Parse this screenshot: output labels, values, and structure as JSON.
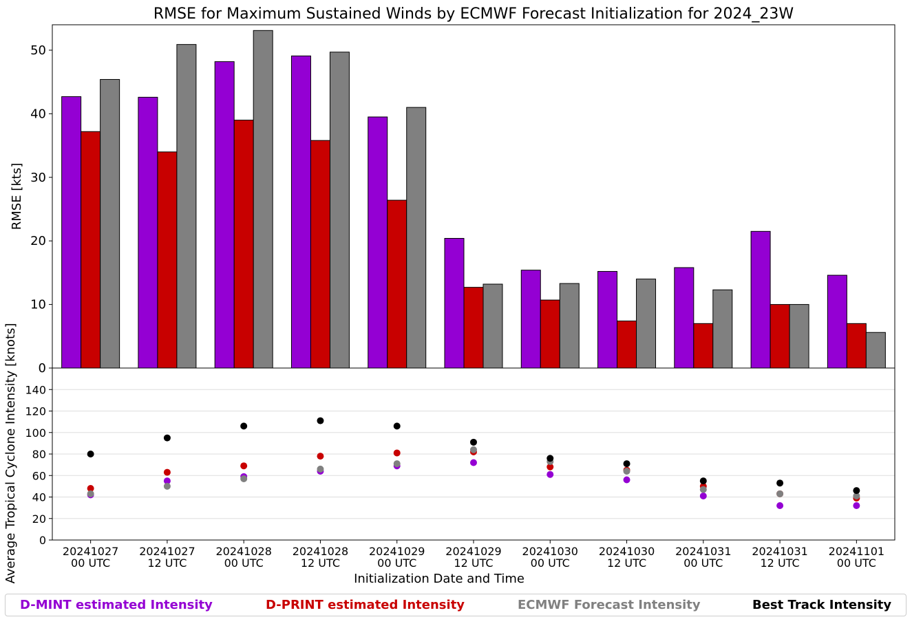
{
  "chart_data": [
    {
      "type": "bar",
      "title": "RMSE for Maximum Sustained Winds by ECMWF Forecast Initialization for 2024_23W",
      "ylabel": "RMSE [kts]",
      "ylim": [
        0,
        54
      ],
      "yticks": [
        "0",
        "10",
        "20",
        "30",
        "40",
        "50"
      ],
      "categories": [
        "20241027 00 UTC",
        "20241027 12 UTC",
        "20241028 00 UTC",
        "20241028 12 UTC",
        "20241029 00 UTC",
        "20241029 12 UTC",
        "20241030 00 UTC",
        "20241030 12 UTC",
        "20241031 00 UTC",
        "20241031 12 UTC",
        "20241101 00 UTC"
      ],
      "grid": false,
      "series": [
        {
          "color": "#9400d3",
          "values": [
            42.7,
            42.6,
            48.2,
            49.1,
            39.5,
            20.4,
            15.4,
            15.2,
            15.8,
            21.5,
            14.6
          ]
        },
        {
          "color": "#c80000",
          "values": [
            37.2,
            34.0,
            39.0,
            35.8,
            26.4,
            12.7,
            10.7,
            7.4,
            7.0,
            10.0,
            7.0
          ]
        },
        {
          "color": "#808080",
          "values": [
            45.4,
            50.9,
            53.1,
            49.7,
            41.0,
            13.2,
            13.3,
            14.0,
            12.3,
            10.0,
            5.6
          ]
        }
      ]
    },
    {
      "type": "scatter",
      "ylabel": "Average Tropical Cyclone Intensity [knots]",
      "xlabel": "Initialization Date and Time",
      "ylim": [
        0,
        160
      ],
      "yticks": [
        "0",
        "20",
        "40",
        "60",
        "80",
        "100",
        "120",
        "140"
      ],
      "x_ticks": [
        [
          "20241027",
          "00 UTC"
        ],
        [
          "20241027",
          "12 UTC"
        ],
        [
          "20241028",
          "00 UTC"
        ],
        [
          "20241028",
          "12 UTC"
        ],
        [
          "20241029",
          "00 UTC"
        ],
        [
          "20241029",
          "12 UTC"
        ],
        [
          "20241030",
          "00 UTC"
        ],
        [
          "20241030",
          "12 UTC"
        ],
        [
          "20241031",
          "00 UTC"
        ],
        [
          "20241031",
          "12 UTC"
        ],
        [
          "20241101",
          "00 UTC"
        ]
      ],
      "grid": true,
      "series": [
        {
          "name": "D-MINT estimated Intensity",
          "color": "#9400d3",
          "values": [
            42,
            55,
            59,
            64,
            69,
            72,
            61,
            56,
            41,
            32,
            32
          ]
        },
        {
          "name": "D-PRINT estimated Intensity",
          "color": "#c80000",
          "values": [
            48,
            63,
            69,
            78,
            81,
            82,
            68,
            65,
            50,
            43,
            39
          ]
        },
        {
          "name": "ECMWF Forecast Intensity",
          "color": "#808080",
          "values": [
            43,
            50,
            57,
            66,
            71,
            84,
            73,
            64,
            47,
            43,
            41
          ]
        },
        {
          "name": "Best Track Intensity",
          "color": "#000000",
          "values": [
            80,
            95,
            106,
            111,
            106,
            91,
            76,
            71,
            55,
            53,
            46
          ]
        }
      ]
    }
  ],
  "legend": {
    "items": [
      {
        "label": "D-MINT estimated Intensity",
        "color": "#9400d3"
      },
      {
        "label": "D-PRINT estimated Intensity",
        "color": "#c80000"
      },
      {
        "label": "ECMWF Forecast Intensity",
        "color": "#808080"
      },
      {
        "label": "Best Track Intensity",
        "color": "#000000"
      }
    ]
  }
}
